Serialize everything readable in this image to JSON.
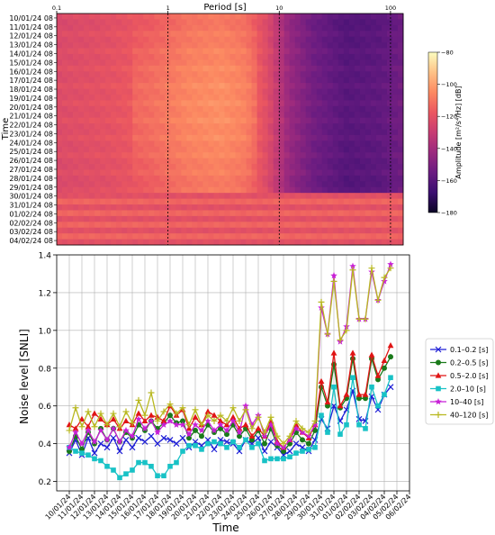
{
  "chart_data": [
    {
      "type": "heatmap",
      "title": "Period [s]",
      "xlabel": "",
      "ylabel": "Time",
      "x_scale": "log",
      "xlim": [
        0.1,
        130
      ],
      "x_ticks": [
        "0.1",
        "1",
        "10",
        "100"
      ],
      "y_categories": [
        "10/01/24 08",
        "11/01/24 08",
        "12/01/24 08",
        "13/01/24 08",
        "14/01/24 08",
        "15/01/24 08",
        "16/01/24 08",
        "17/01/24 08",
        "18/01/24 08",
        "19/01/24 08",
        "20/01/24 08",
        "21/01/24 08",
        "22/01/24 08",
        "23/01/24 08",
        "24/01/24 08",
        "25/01/24 08",
        "26/01/24 08",
        "27/01/24 08",
        "28/01/24 08",
        "29/01/24 08",
        "30/01/24 08",
        "31/01/24 08",
        "01/02/24 08",
        "02/02/24 08",
        "03/02/24 08",
        "04/02/24 08"
      ],
      "colorbar": {
        "label": "Amplitude [m²/s⁴/Hz] [dB]",
        "ticks": [
          "-80",
          "-100",
          "-120",
          "-140",
          "-160",
          "-180"
        ],
        "range": [
          -180,
          -80
        ],
        "colors": [
          "#0b0424",
          "#3b0f70",
          "#6a1c81",
          "#9b2a7e",
          "#c73d73",
          "#eb5760",
          "#fc8961",
          "#fec287",
          "#fcfdbf"
        ]
      },
      "amplitude_profile_dB": {
        "period_s": [
          0.1,
          0.3,
          0.7,
          1.5,
          3,
          5,
          8,
          12,
          20,
          40,
          80,
          130
        ],
        "early_days": [
          -125,
          -122,
          -118,
          -112,
          -110,
          -113,
          -125,
          -145,
          -155,
          -162,
          -160,
          -155
        ],
        "late_days": [
          -118,
          -118,
          -118,
          -118,
          -118,
          -118,
          -118,
          -118,
          -118,
          -118,
          -118,
          -118
        ]
      }
    },
    {
      "type": "line",
      "title": "",
      "xlabel": "Time",
      "ylabel": "Noise level [SNLI]",
      "ylim": [
        0.15,
        1.4
      ],
      "y_ticks": [
        "0.2",
        "0.4",
        "0.6",
        "0.8",
        "1.0",
        "1.2",
        "1.4"
      ],
      "grid": true,
      "legend_position": "right",
      "x_ticks": [
        "10/01/24",
        "11/01/24",
        "12/01/24",
        "13/01/24",
        "14/01/24",
        "15/01/24",
        "16/01/24",
        "17/01/24",
        "18/01/24",
        "19/01/24",
        "20/01/24",
        "21/01/24",
        "22/01/24",
        "23/01/24",
        "24/01/24",
        "25/01/24",
        "26/01/24",
        "27/01/24",
        "28/01/24",
        "29/01/24",
        "30/01/24",
        "31/01/24",
        "01/02/24",
        "02/02/24",
        "03/02/24",
        "04/02/24",
        "05/02/24",
        "06/02/24"
      ],
      "x": [
        0,
        0.5,
        1,
        1.5,
        2,
        2.5,
        3,
        3.5,
        4,
        4.5,
        5,
        5.5,
        6,
        6.5,
        7,
        7.5,
        8,
        8.5,
        9,
        9.5,
        10,
        10.5,
        11,
        11.5,
        12,
        12.5,
        13,
        13.5,
        14,
        14.5,
        15,
        15.5,
        16,
        16.5,
        17,
        17.5,
        18,
        18.5,
        19,
        19.5,
        20,
        20.5,
        21,
        21.5,
        22,
        22.5,
        23,
        23.5,
        24,
        24.5,
        25,
        25.5
      ],
      "series": [
        {
          "name": "0.1–0.2 [s]",
          "color": "#1f1fd6",
          "marker": "x",
          "values": [
            0.35,
            0.42,
            0.34,
            0.43,
            0.35,
            0.4,
            0.38,
            0.43,
            0.36,
            0.42,
            0.38,
            0.43,
            0.41,
            0.44,
            0.4,
            0.43,
            0.42,
            0.4,
            0.43,
            0.38,
            0.41,
            0.39,
            0.42,
            0.37,
            0.42,
            0.41,
            0.4,
            0.36,
            0.42,
            0.4,
            0.43,
            0.36,
            0.41,
            0.38,
            0.34,
            0.36,
            0.4,
            0.38,
            0.36,
            0.42,
            0.53,
            0.48,
            0.6,
            0.52,
            0.58,
            0.68,
            0.53,
            0.52,
            0.65,
            0.58,
            0.66,
            0.7
          ]
        },
        {
          "name": "0.2–0.5 [s]",
          "color": "#1a7a1a",
          "marker": "o",
          "values": [
            0.36,
            0.44,
            0.37,
            0.46,
            0.4,
            0.48,
            0.42,
            0.48,
            0.41,
            0.46,
            0.43,
            0.5,
            0.47,
            0.52,
            0.48,
            0.51,
            0.55,
            0.51,
            0.52,
            0.43,
            0.47,
            0.44,
            0.5,
            0.46,
            0.48,
            0.45,
            0.5,
            0.44,
            0.48,
            0.42,
            0.47,
            0.4,
            0.48,
            0.39,
            0.36,
            0.4,
            0.46,
            0.42,
            0.4,
            0.47,
            0.7,
            0.6,
            0.82,
            0.59,
            0.64,
            0.85,
            0.64,
            0.64,
            0.85,
            0.74,
            0.8,
            0.86
          ]
        },
        {
          "name": "0.5–2.0 [s]",
          "color": "#e01515",
          "marker": "^",
          "values": [
            0.5,
            0.48,
            0.53,
            0.49,
            0.56,
            0.53,
            0.5,
            0.53,
            0.48,
            0.52,
            0.5,
            0.56,
            0.52,
            0.55,
            0.54,
            0.52,
            0.6,
            0.55,
            0.58,
            0.48,
            0.54,
            0.5,
            0.57,
            0.55,
            0.52,
            0.5,
            0.54,
            0.48,
            0.5,
            0.44,
            0.48,
            0.44,
            0.52,
            0.41,
            0.38,
            0.42,
            0.5,
            0.46,
            0.43,
            0.5,
            0.73,
            0.62,
            0.88,
            0.6,
            0.66,
            0.88,
            0.66,
            0.66,
            0.87,
            0.76,
            0.84,
            0.92
          ]
        },
        {
          "name": "2.0–10 [s]",
          "color": "#18c2c6",
          "marker": "s",
          "values": [
            0.38,
            0.36,
            0.35,
            0.34,
            0.32,
            0.31,
            0.28,
            0.26,
            0.22,
            0.24,
            0.26,
            0.3,
            0.3,
            0.28,
            0.23,
            0.23,
            0.28,
            0.3,
            0.36,
            0.39,
            0.39,
            0.37,
            0.4,
            0.41,
            0.4,
            0.38,
            0.41,
            0.38,
            0.42,
            0.38,
            0.4,
            0.31,
            0.32,
            0.32,
            0.32,
            0.33,
            0.35,
            0.36,
            0.37,
            0.38,
            0.55,
            0.46,
            0.7,
            0.45,
            0.5,
            0.75,
            0.5,
            0.48,
            0.7,
            0.6,
            0.66,
            0.75
          ]
        },
        {
          "name": "10–40   [s]",
          "color": "#c81fd6",
          "marker": "*",
          "values": [
            0.38,
            0.46,
            0.4,
            0.47,
            0.41,
            0.47,
            0.42,
            0.48,
            0.41,
            0.47,
            0.44,
            0.53,
            0.48,
            0.52,
            0.46,
            0.5,
            0.52,
            0.5,
            0.5,
            0.45,
            0.5,
            0.47,
            0.52,
            0.47,
            0.5,
            0.47,
            0.52,
            0.46,
            0.6,
            0.5,
            0.55,
            0.44,
            0.5,
            0.4,
            0.38,
            0.42,
            0.48,
            0.46,
            0.44,
            0.5,
            1.12,
            0.98,
            1.29,
            0.94,
            1.02,
            1.34,
            1.06,
            1.06,
            1.31,
            1.16,
            1.26,
            1.35
          ]
        },
        {
          "name": "40–120 [s]",
          "color": "#b8b820",
          "marker": "+",
          "values": [
            0.47,
            0.59,
            0.49,
            0.57,
            0.49,
            0.56,
            0.5,
            0.56,
            0.49,
            0.57,
            0.51,
            0.63,
            0.55,
            0.67,
            0.52,
            0.57,
            0.61,
            0.56,
            0.59,
            0.5,
            0.58,
            0.5,
            0.55,
            0.52,
            0.55,
            0.52,
            0.59,
            0.52,
            0.58,
            0.48,
            0.54,
            0.46,
            0.54,
            0.44,
            0.4,
            0.44,
            0.52,
            0.48,
            0.46,
            0.52,
            1.15,
            0.98,
            1.26,
            0.95,
            1.0,
            1.32,
            1.06,
            1.06,
            1.33,
            1.16,
            1.28,
            1.33
          ]
        }
      ]
    }
  ]
}
